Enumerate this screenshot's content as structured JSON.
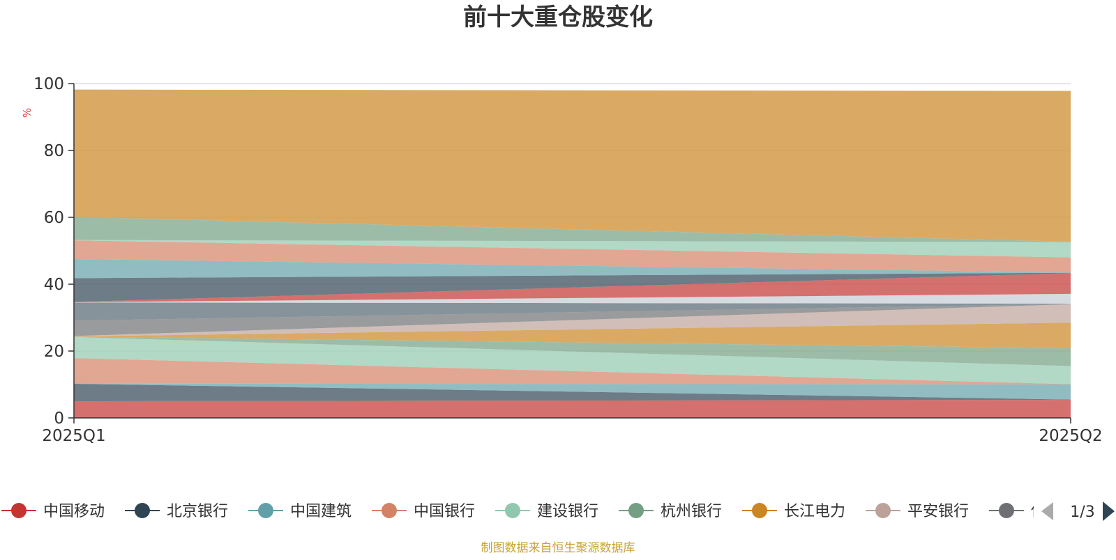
{
  "chart_data": {
    "type": "area",
    "title": "前十大重仓股变化",
    "ylabel": "%",
    "x": [
      "2025Q1",
      "2025Q2"
    ],
    "ylim": [
      0,
      100
    ],
    "yticks": [
      0,
      20,
      40,
      60,
      80,
      100
    ],
    "grid": true,
    "series": [
      {
        "name": "中国移动",
        "values": [
          5.0,
          5.4
        ],
        "color": "#c23531"
      },
      {
        "name": "北京银行",
        "values": [
          5.2,
          0.1
        ],
        "color": "#2f4554"
      },
      {
        "name": "中国建筑",
        "values": [
          0.1,
          4.5
        ],
        "color": "#61a0a8"
      },
      {
        "name": "中国银行",
        "values": [
          7.6,
          0.1
        ],
        "color": "#d48265"
      },
      {
        "name": "建设银行",
        "values": [
          6.3,
          5.4
        ],
        "color": "#91c7ae"
      },
      {
        "name": "杭州银行",
        "values": [
          0.1,
          5.4
        ],
        "color": "#749f83"
      },
      {
        "name": "长江电力",
        "values": [
          0.1,
          7.6
        ],
        "color": "#ca8622"
      },
      {
        "name": "平安银行",
        "values": [
          0.1,
          5.5
        ],
        "color": "#bda29a"
      },
      {
        "name": "",
        "values": [
          4.6,
          0.1
        ],
        "color": "#6e7074"
      },
      {
        "name": "",
        "values": [
          5.4,
          0.1
        ],
        "color": "#546570"
      },
      {
        "name": "",
        "values": [
          0.1,
          2.9
        ],
        "color": "#c4ccd3"
      },
      {
        "name": "",
        "values": [
          0.1,
          6.2
        ],
        "color": "#c23531"
      },
      {
        "name": "",
        "values": [
          7.1,
          0.1
        ],
        "color": "#2f4554"
      },
      {
        "name": "",
        "values": [
          5.7,
          0.1
        ],
        "color": "#61a0a8"
      },
      {
        "name": "",
        "values": [
          5.6,
          4.5
        ],
        "color": "#d48265"
      },
      {
        "name": "",
        "values": [
          0.1,
          4.6
        ],
        "color": "#91c7ae"
      },
      {
        "name": "",
        "values": [
          6.9,
          0.1
        ],
        "color": "#749f83"
      },
      {
        "name": "",
        "values": [
          38.1,
          45.1
        ],
        "color": "#ca8622"
      }
    ]
  },
  "legend": {
    "page": "1/3",
    "items": [
      {
        "label": "中国移动",
        "color": "#c23531"
      },
      {
        "label": "北京银行",
        "color": "#2f4554"
      },
      {
        "label": "中国建筑",
        "color": "#61a0a8"
      },
      {
        "label": "中国银行",
        "color": "#d48265"
      },
      {
        "label": "建设银行",
        "color": "#91c7ae"
      },
      {
        "label": "杭州银行",
        "color": "#749f83"
      },
      {
        "label": "长江电力",
        "color": "#ca8622"
      },
      {
        "label": "平安银行",
        "color": "#bda29a"
      },
      {
        "label": "伊",
        "color": "#6e7074"
      }
    ]
  },
  "source": {
    "text": "制图数据来自恒生聚源数据库",
    "color": "#c8a232"
  }
}
